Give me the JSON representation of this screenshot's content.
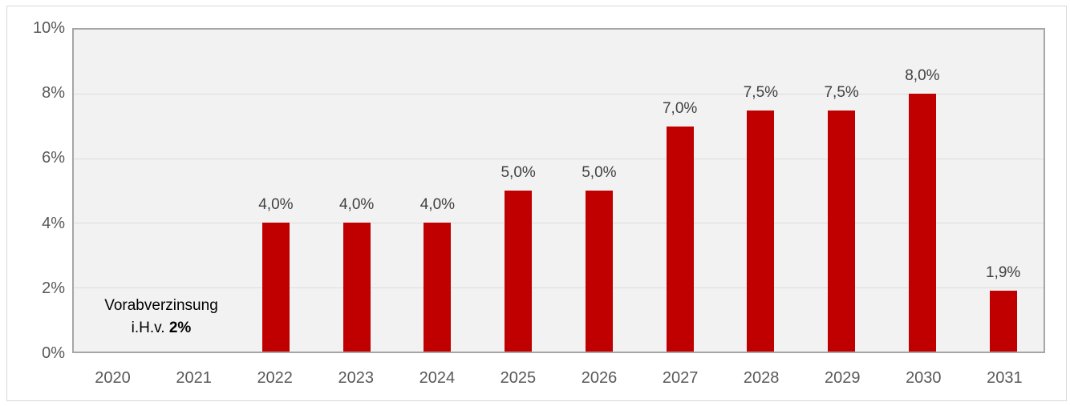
{
  "chart_data": {
    "type": "bar",
    "categories": [
      "2020",
      "2021",
      "2022",
      "2023",
      "2024",
      "2025",
      "2026",
      "2027",
      "2028",
      "2029",
      "2030",
      "2031"
    ],
    "values": [
      null,
      null,
      4.0,
      4.0,
      4.0,
      5.0,
      5.0,
      7.0,
      7.5,
      7.5,
      8.0,
      1.9
    ],
    "bar_labels": [
      "",
      "",
      "4,0%",
      "4,0%",
      "4,0%",
      "5,0%",
      "5,0%",
      "7,0%",
      "7,5%",
      "7,5%",
      "8,0%",
      "1,9%"
    ],
    "title": "",
    "xlabel": "",
    "ylabel": "",
    "ylim": [
      0,
      10
    ],
    "ytick_step": 2,
    "yticks": [
      {
        "value": 0,
        "label": "0%"
      },
      {
        "value": 2,
        "label": "2%"
      },
      {
        "value": 4,
        "label": "4%"
      },
      {
        "value": 6,
        "label": "6%"
      },
      {
        "value": 8,
        "label": "8%"
      },
      {
        "value": 10,
        "label": "10%"
      }
    ],
    "grid": true,
    "legend": "none",
    "colors": {
      "bar": "#C00000",
      "plot_background": "#F2F2F2",
      "gridline": "#DCDCDC",
      "plot_border": "#A6A6A6",
      "chart_border": "#D9D9D9",
      "axis_text": "#595959",
      "label_text": "#404040",
      "annotation_text": "#000000"
    },
    "annotation": {
      "line1": "Vorabverzinsung",
      "line2_prefix": "i.H.v. ",
      "line2_bold": "2%"
    }
  }
}
